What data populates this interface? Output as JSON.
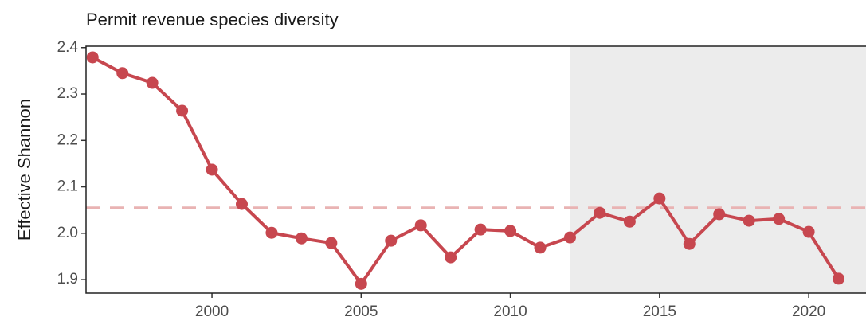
{
  "chart_data": {
    "type": "line",
    "title": "Permit revenue species diversity",
    "y_label": "Effective Shannon",
    "x": [
      1996,
      1997,
      1998,
      1999,
      2000,
      2001,
      2002,
      2003,
      2004,
      2005,
      2006,
      2007,
      2008,
      2009,
      2010,
      2011,
      2012,
      2013,
      2014,
      2015,
      2016,
      2017,
      2018,
      2019,
      2020,
      2021
    ],
    "values": [
      2.379,
      2.345,
      2.324,
      2.264,
      2.137,
      2.063,
      2.001,
      1.989,
      1.979,
      1.891,
      1.984,
      2.017,
      1.948,
      2.008,
      2.005,
      1.969,
      1.991,
      2.044,
      2.025,
      2.075,
      1.977,
      2.041,
      2.027,
      2.031,
      2.003,
      1.902
    ],
    "color": "#c7474f",
    "reference_line": 2.055,
    "reference_color": "#e9b3b3",
    "shade_from": 2012,
    "shade_color": "#ececec",
    "xlim": [
      1995.78,
      2021.92
    ],
    "xticks": [
      2000,
      2005,
      2010,
      2015,
      2020
    ],
    "ylim": [
      1.871,
      2.403
    ],
    "yticks": [
      1.9,
      {
        "value": 2,
        "label": "2.0"
      },
      2.1,
      2.2,
      2.3,
      2.4
    ]
  }
}
